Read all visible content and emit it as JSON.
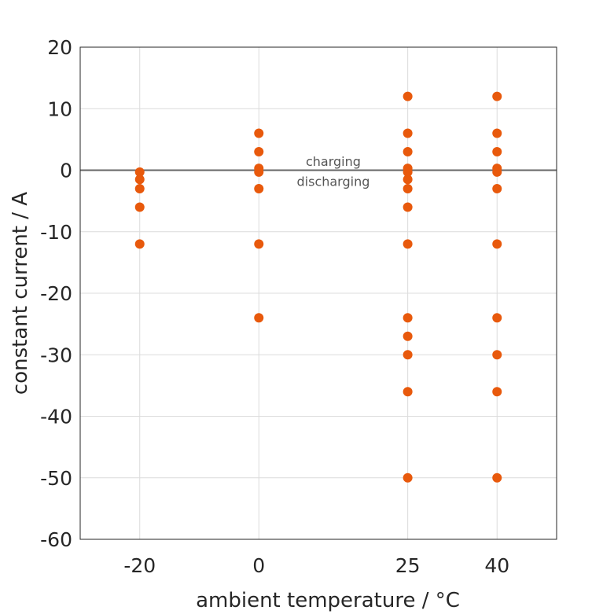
{
  "chart_data": {
    "type": "scatter",
    "xlabel": "ambient temperature / °C",
    "ylabel": "constant current / A",
    "xlim": [
      -30,
      50
    ],
    "ylim": [
      -60,
      20
    ],
    "xticks": [
      -20,
      0,
      25,
      40
    ],
    "yticks": [
      20,
      10,
      0,
      -10,
      -20,
      -30,
      -40,
      -50,
      -60
    ],
    "grid": true,
    "marker_color": "#e8590c",
    "reference_line": {
      "y": 0,
      "color": "#666666"
    },
    "annotations": [
      {
        "text": "charging",
        "x": 12.5,
        "y": 1.5
      },
      {
        "text": "discharging",
        "x": 12.5,
        "y": -1.8
      }
    ],
    "points": [
      {
        "x": -20,
        "y": -0.3
      },
      {
        "x": -20,
        "y": -1.5
      },
      {
        "x": -20,
        "y": -3
      },
      {
        "x": -20,
        "y": -6
      },
      {
        "x": -20,
        "y": -12
      },
      {
        "x": 0,
        "y": 6
      },
      {
        "x": 0,
        "y": 3
      },
      {
        "x": 0,
        "y": 0.3
      },
      {
        "x": 0,
        "y": -0.3
      },
      {
        "x": 0,
        "y": -3
      },
      {
        "x": 0,
        "y": -12
      },
      {
        "x": 0,
        "y": -24
      },
      {
        "x": 25,
        "y": 12
      },
      {
        "x": 25,
        "y": 6
      },
      {
        "x": 25,
        "y": 3
      },
      {
        "x": 25,
        "y": 0.3
      },
      {
        "x": 25,
        "y": -0.3
      },
      {
        "x": 25,
        "y": -1.5
      },
      {
        "x": 25,
        "y": -3
      },
      {
        "x": 25,
        "y": -6
      },
      {
        "x": 25,
        "y": -12
      },
      {
        "x": 25,
        "y": -24
      },
      {
        "x": 25,
        "y": -27
      },
      {
        "x": 25,
        "y": -30
      },
      {
        "x": 25,
        "y": -36
      },
      {
        "x": 25,
        "y": -50
      },
      {
        "x": 40,
        "y": 12
      },
      {
        "x": 40,
        "y": 6
      },
      {
        "x": 40,
        "y": 3
      },
      {
        "x": 40,
        "y": 0.3
      },
      {
        "x": 40,
        "y": -0.3
      },
      {
        "x": 40,
        "y": -3
      },
      {
        "x": 40,
        "y": -12
      },
      {
        "x": 40,
        "y": -24
      },
      {
        "x": 40,
        "y": -30
      },
      {
        "x": 40,
        "y": -36
      },
      {
        "x": 40,
        "y": -50
      }
    ]
  }
}
